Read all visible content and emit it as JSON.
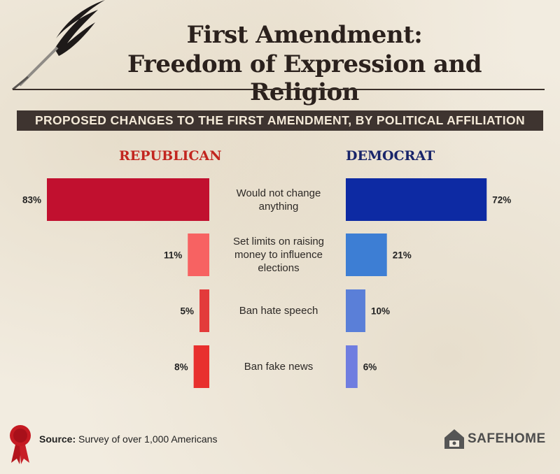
{
  "title_line1": "First Amendment:",
  "title_line2": "Freedom of Expression and Religion",
  "banner": "PROPOSED CHANGES TO THE FIRST AMENDMENT, BY POLITICAL AFFILIATION",
  "colors": {
    "republican_label": "#c2261f",
    "democrat_label": "#18246a",
    "republican_bars": [
      "#c1102f",
      "#f76262",
      "#e33b3b",
      "#e8302e"
    ],
    "democrat_bars": [
      "#0d2aa3",
      "#3d7ed4",
      "#5a7fd8",
      "#6f7de0"
    ]
  },
  "chart_data": {
    "type": "bar",
    "orientation": "horizontal-butterfly",
    "categories": [
      "Would not change anything",
      "Set limits on raising money to influence elections",
      "Ban hate speech",
      "Ban fake news"
    ],
    "category_lines": [
      [
        "Would not change",
        "anything"
      ],
      [
        "Set limits on raising",
        "money to influence",
        "elections"
      ],
      [
        "Ban hate speech"
      ],
      [
        "Ban fake news"
      ]
    ],
    "series": [
      {
        "name": "REPUBLICAN",
        "values": [
          83,
          11,
          5,
          8
        ],
        "labels": [
          "83%",
          "11%",
          "5%",
          "8%"
        ]
      },
      {
        "name": "DEMOCRAT",
        "values": [
          72,
          21,
          10,
          6
        ],
        "labels": [
          "72%",
          "21%",
          "10%",
          "6%"
        ]
      }
    ],
    "unit": "%"
  },
  "footer": {
    "source_label": "Source:",
    "source_text": "Survey of over 1,000 Americans",
    "logo": "SAFEHOME",
    "ribbon_icon": "award-ribbon-icon",
    "logo_icon": "house-logo-icon"
  }
}
